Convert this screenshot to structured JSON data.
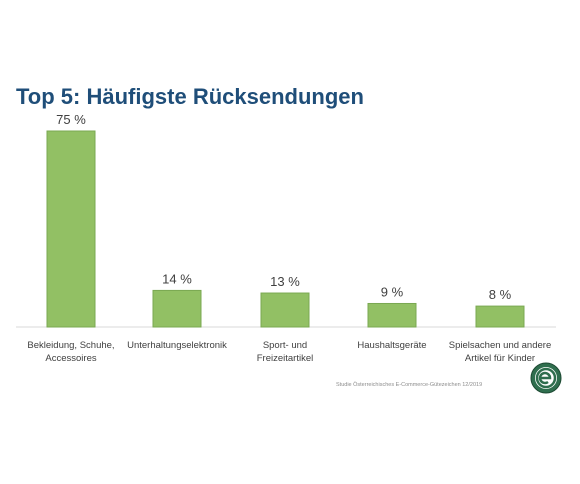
{
  "title": "Top 5: Häufigste Rücksendungen",
  "source": "Studie Österreichisches E-Commerce-Gütezeichen 12/2019",
  "colors": {
    "bar": "#92c064",
    "title": "#1f4e79"
  },
  "logo_icon": "ecommerce-guetezeichen-logo",
  "chart_data": {
    "type": "bar",
    "title": "Top 5: Häufigste Rücksendungen",
    "categories": [
      [
        "Bekleidung, Schuhe,",
        "Accessoires"
      ],
      [
        "Unterhaltungselektronik"
      ],
      [
        "Sport- und",
        "Freizeitartikel"
      ],
      [
        "Haushaltsgeräte"
      ],
      [
        "Spielsachen und andere",
        "Artikel für Kinder"
      ]
    ],
    "values": [
      75,
      14,
      13,
      9,
      8
    ],
    "labels": [
      "75 %",
      "14 %",
      "13 %",
      "9 %",
      "8 %"
    ],
    "ylim": [
      0,
      75
    ],
    "grid": false
  }
}
